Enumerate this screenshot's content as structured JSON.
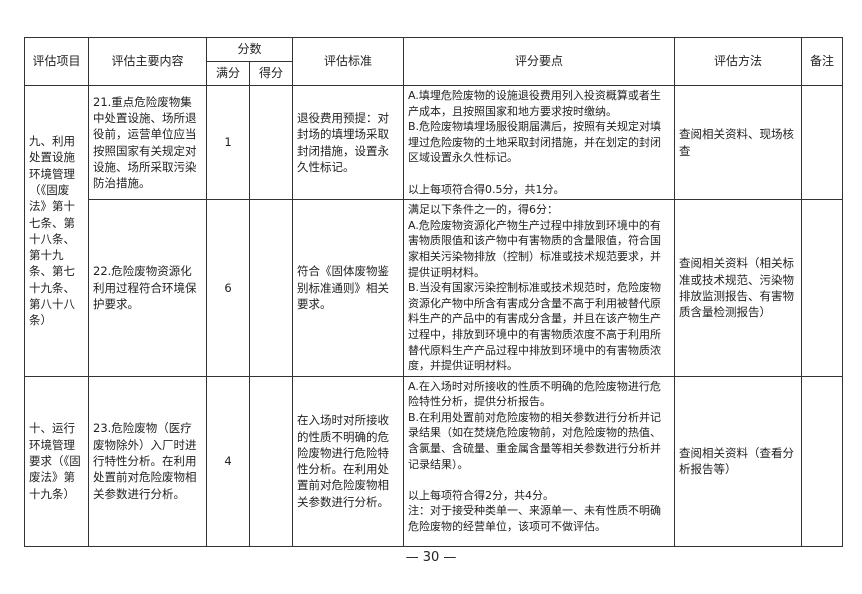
{
  "header": {
    "item": "评估项目",
    "content": "评估主要内容",
    "score": "分数",
    "full_score": "满分",
    "got_score": "得分",
    "standard": "评估标准",
    "points": "评分要点",
    "method": "评估方法",
    "remark": "备注"
  },
  "groups": [
    {
      "item": "九、利用处置设施环境管理（《固废法》第十七条、第十八条、第十九条、第七十九条、第八十八条）"
    },
    {
      "item": "十、运行环境管理要求（《固废法》第十九条）"
    }
  ],
  "rows": [
    {
      "content": "21.重点危险废物集中处置设施、场所退役前，运营单位应当按照国家有关规定对设施、场所采取污染防治措施。",
      "full_score": "1",
      "got_score": "",
      "standard": "退役费用预提：对封场的填埋场采取封闭措施，设置永久性标记。",
      "points": "A.填埋危险废物的设施退役费用列入投资概算或者生产成本，且按照国家和地方要求按时缴纳。\nB.危险废物填埋场服役期届满后，按照有关规定对填埋过危险废物的土地采取封闭措施，并在划定的封闭区域设置永久性标记。\n\n以上每项符合得0.5分，共1分。",
      "method": "查阅相关资料、现场核查",
      "remark": ""
    },
    {
      "content": "22.危险废物资源化利用过程符合环境保护要求。",
      "full_score": "6",
      "got_score": "",
      "standard": "符合《固体废物鉴别标准通则》相关要求。",
      "points": "满足以下条件之一的，得6分：\nA.危险废物资源化产物生产过程中排放到环境中的有害物质限值和该产物中有害物质的含量限值，符合国家相关污染物排放（控制）标准或技术规范要求，并提供证明材料。\nB.当没有国家污染控制标准或技术规范时，危险废物资源化产物中所含有害成分含量不高于利用被替代原料生产的产品中的有害成分含量，并且在该产物生产过程中，排放到环境中的有害物质浓度不高于利用所替代原料生产产品过程中排放到环境中的有害物质浓度，并提供证明材料。",
      "method": "查阅相关资料（相关标准或技术规范、污染物排放监测报告、有害物质含量检测报告）",
      "remark": ""
    },
    {
      "content": "23.危险废物（医疗废物除外）入厂时进行特性分析。在利用处置前对危险废物相关参数进行分析。",
      "full_score": "4",
      "got_score": "",
      "standard": "在入场时对所接收的性质不明确的危险废物进行危险特性分析。在利用处置前对危险废物相关参数进行分析。",
      "points": "A.在入场时对所接收的性质不明确的危险废物进行危险特性分析，提供分析报告。\nB.在利用处置前对危险废物的相关参数进行分析并记录结果（如在焚烧危险废物前，对危险废物的热值、含氯量、含硫量、重金属含量等相关参数进行分析并记录结果）。\n\n以上每项符合得2分，共4分。\n注：对于接受种类单一、来源单一、未有性质不明确危险废物的经营单位，该项可不做评估。",
      "method": "查阅相关资料（查看分析报告等）",
      "remark": ""
    }
  ],
  "page_number": "— 30 —"
}
